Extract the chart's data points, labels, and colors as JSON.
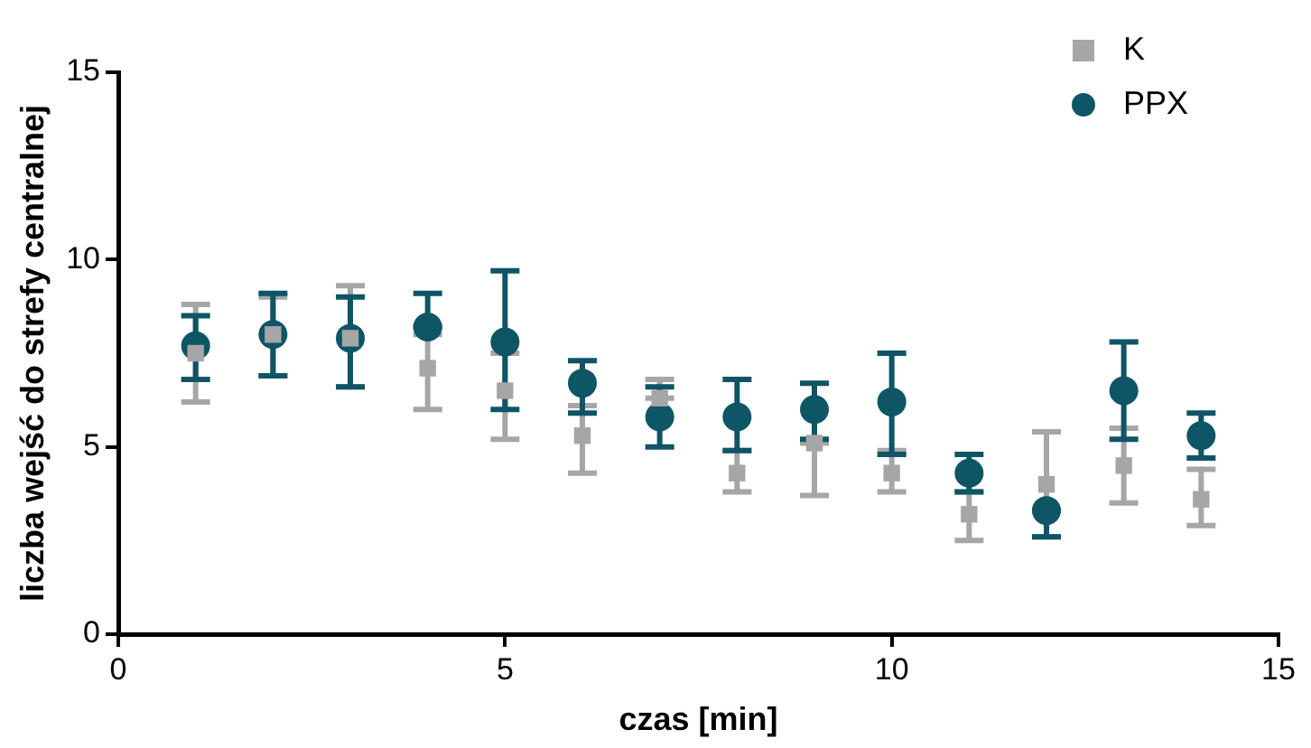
{
  "chart_data": {
    "type": "scatter",
    "xlabel": "czas [min]",
    "ylabel": "liczba wejść do strefy centralnej",
    "x": [
      1,
      2,
      3,
      4,
      5,
      6,
      7,
      8,
      9,
      10,
      11,
      12,
      13,
      14
    ],
    "series": [
      {
        "name": "K",
        "color": "#a6a6a6",
        "marker": "square",
        "values": [
          7.5,
          8.0,
          7.9,
          7.1,
          6.5,
          5.3,
          6.3,
          4.3,
          5.1,
          4.3,
          3.2,
          4.0,
          4.5,
          3.6
        ],
        "errors": [
          [
            6.2,
            8.8
          ],
          [
            6.9,
            9.0
          ],
          [
            6.6,
            9.3
          ],
          [
            6.0,
            8.0
          ],
          [
            5.2,
            7.5
          ],
          [
            4.3,
            6.1
          ],
          [
            6.3,
            6.8
          ],
          [
            3.8,
            4.9
          ],
          [
            3.7,
            5.1
          ],
          [
            3.8,
            4.9
          ],
          [
            2.5,
            3.8
          ],
          [
            2.6,
            5.4
          ],
          [
            3.5,
            5.5
          ],
          [
            2.9,
            4.4
          ]
        ]
      },
      {
        "name": "PPX",
        "color": "#0e5566",
        "marker": "circle",
        "values": [
          7.7,
          8.0,
          7.9,
          8.2,
          7.8,
          6.7,
          5.8,
          5.8,
          6.0,
          6.2,
          4.3,
          3.3,
          6.5,
          5.3
        ],
        "errors": [
          [
            6.8,
            8.5
          ],
          [
            6.9,
            9.1
          ],
          [
            6.6,
            9.0
          ],
          [
            8.2,
            9.1
          ],
          [
            6.0,
            9.7
          ],
          [
            5.9,
            7.3
          ],
          [
            5.0,
            6.6
          ],
          [
            4.9,
            6.8
          ],
          [
            5.2,
            6.7
          ],
          [
            4.8,
            7.5
          ],
          [
            3.8,
            4.8
          ],
          [
            2.6,
            3.3
          ],
          [
            5.2,
            7.8
          ],
          [
            4.7,
            5.9
          ]
        ]
      }
    ],
    "xlim": [
      0,
      15
    ],
    "xticks": [
      0,
      5,
      10,
      15
    ],
    "ylim": [
      0,
      15
    ],
    "yticks": [
      0,
      5,
      10,
      15
    ],
    "grid": false,
    "legend": "top right"
  }
}
